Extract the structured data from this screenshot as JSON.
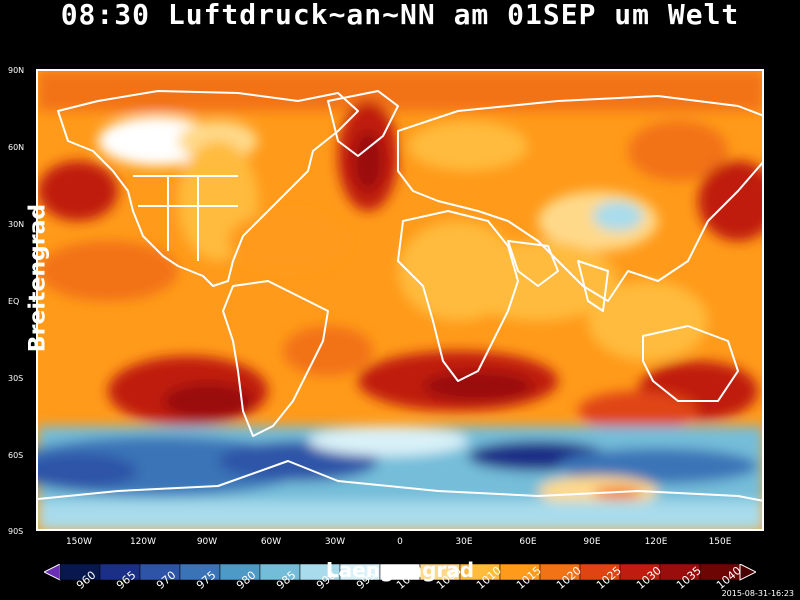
{
  "title": "08:30 Luftdruck~an~NN am 01SEP um Welt",
  "axes": {
    "ylabel": "Breitengrad",
    "xlabel": "Laengengrad",
    "lat_ticks": [
      "90N",
      "60N",
      "30N",
      "EQ",
      "30S",
      "60S",
      "90S"
    ],
    "lon_ticks": [
      "150W",
      "120W",
      "90W",
      "60W",
      "30W",
      "0",
      "30E",
      "60E",
      "90E",
      "120E",
      "150E"
    ]
  },
  "colorbar": {
    "levels": [
      "960",
      "965",
      "970",
      "975",
      "980",
      "985",
      "990",
      "995",
      "1000",
      "1005",
      "1010",
      "1015",
      "1020",
      "1025",
      "1030",
      "1035",
      "1040"
    ],
    "colors": [
      "#08184f",
      "#1c2f86",
      "#2d54a7",
      "#3a74b7",
      "#4d9ac7",
      "#74bdd9",
      "#a8dcec",
      "#d9f1f8",
      "#ffffff",
      "#ffd98a",
      "#ffbb3c",
      "#ff9a1a",
      "#f27216",
      "#e04412",
      "#c01d10",
      "#9a0d0d",
      "#6e0505"
    ]
  },
  "timestamp": "2015-08-31-16:23"
}
